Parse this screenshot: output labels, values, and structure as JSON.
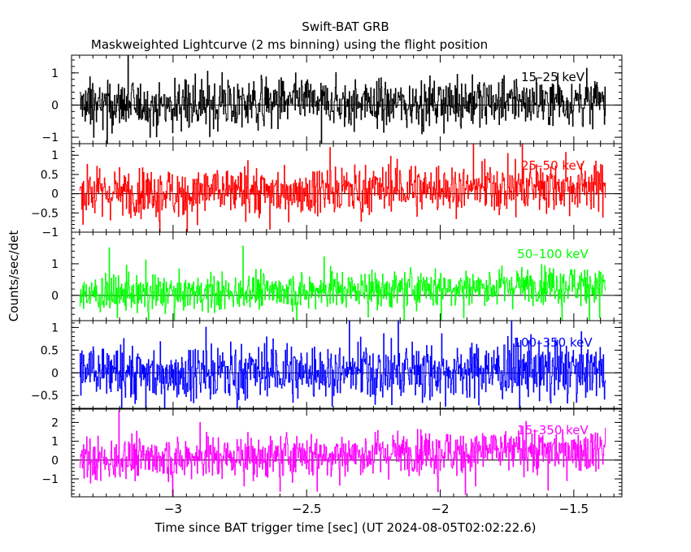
{
  "figure": {
    "title": "Swift-BAT GRB",
    "subtitle": "Maskweighted Lightcurve (2 ms binning) using the flight position",
    "xlabel": "Time since BAT trigger time [sec] (UT 2024-08-05T02:02:22.6)",
    "ylabel": "Counts/sec/det"
  },
  "chart_data": [
    {
      "type": "line",
      "panel": "15-25 keV",
      "label": "15–25 keV",
      "color": "#000000",
      "x_range": [
        -3.35,
        -1.38
      ],
      "xlim": [
        -3.38,
        -1.32
      ],
      "ylim": [
        -1.2,
        1.55
      ],
      "yticks": [
        -1,
        0,
        1
      ],
      "yticklabels": [
        "−1",
        "0",
        "1"
      ],
      "amplitude": 0.55,
      "trend": 0.12,
      "spike": 1.2
    },
    {
      "type": "line",
      "panel": "25-50 keV",
      "label": "25–50 keV",
      "color": "#ff0000",
      "x_range": [
        -3.35,
        -1.38
      ],
      "xlim": [
        -3.38,
        -1.32
      ],
      "ylim": [
        -1.0,
        1.3
      ],
      "yticks": [
        -1,
        -0.5,
        0,
        0.5,
        1
      ],
      "yticklabels": [
        "−1",
        "−0.5",
        "0",
        "0.5",
        "1"
      ],
      "amplitude": 0.45,
      "trend": 0.2,
      "spike": 1.1
    },
    {
      "type": "line",
      "panel": "50-100 keV",
      "label": "50–100 keV",
      "color": "#00ff00",
      "x_range": [
        -3.35,
        -1.38
      ],
      "xlim": [
        -3.38,
        -1.32
      ],
      "ylim": [
        -0.8,
        2.0
      ],
      "yticks": [
        0,
        1
      ],
      "yticklabels": [
        "0",
        "1"
      ],
      "amplitude": 0.4,
      "trend": 0.35,
      "spike": 1.4
    },
    {
      "type": "line",
      "panel": "100-350 keV",
      "label": "100–350 keV",
      "color": "#0000ff",
      "x_range": [
        -3.35,
        -1.38
      ],
      "xlim": [
        -3.38,
        -1.32
      ],
      "ylim": [
        -0.8,
        1.15
      ],
      "yticks": [
        -0.5,
        0,
        0.5,
        1
      ],
      "yticklabels": [
        "−0.5",
        "0",
        "0.5",
        "1"
      ],
      "amplitude": 0.45,
      "trend": 0.05,
      "spike": 1.0
    },
    {
      "type": "line",
      "panel": "15-350 keV",
      "label": "15–350 keV",
      "color": "#ff00ff",
      "x_range": [
        -3.35,
        -1.38
      ],
      "xlim": [
        -3.38,
        -1.32
      ],
      "ylim": [
        -1.95,
        2.75
      ],
      "yticks": [
        -1,
        0,
        1,
        2
      ],
      "yticklabels": [
        "−1",
        "0",
        "1",
        "2"
      ],
      "amplitude": 0.8,
      "trend": 0.6,
      "spike": 2.4
    }
  ],
  "xaxis": {
    "ticks": [
      -3,
      -2.5,
      -2,
      -1.5
    ],
    "ticklabels": [
      "−3",
      "−2.5",
      "−2",
      "−1.5"
    ]
  }
}
